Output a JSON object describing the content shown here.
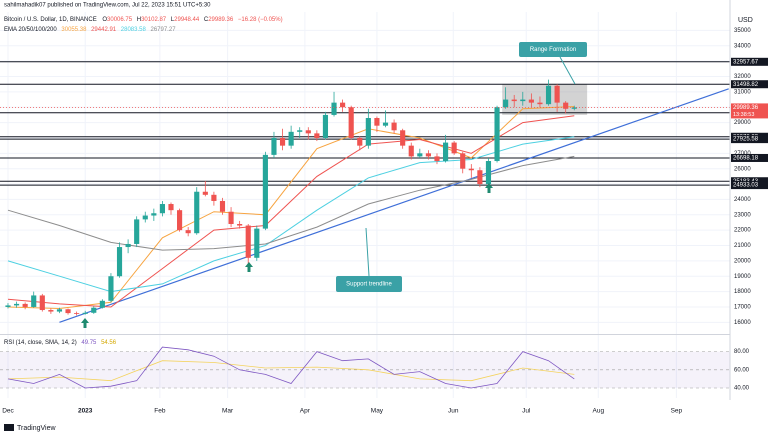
{
  "chart_data": {
    "type": "candlestick",
    "publisher": "sahilmahadik07 published on TradingView.com, Jul 22, 2023 15:51 UTC+5:30",
    "symbol": "Bitcoin / U.S. Dollar, 1D, BINANCE",
    "ohlc_labels": [
      "O",
      "H",
      "L",
      "C"
    ],
    "ohlc_values": [
      30006.75,
      30102.87,
      29948.44,
      29989.36
    ],
    "change": "−16.28 (−0.05%)",
    "ema_label": "EMA 20/50/100/200",
    "ema_values": [
      30055.38,
      29442.91,
      28083.58,
      26797.27
    ],
    "currency": "USD",
    "up_color": "#26a69a",
    "down_color": "#ef5350",
    "candles": [
      [
        17000,
        17250,
        16900,
        17100
      ],
      [
        17100,
        17350,
        16950,
        17200
      ],
      [
        17200,
        17300,
        16850,
        17000
      ],
      [
        17000,
        18000,
        16950,
        17750
      ],
      [
        17750,
        17850,
        16700,
        16800
      ],
      [
        16800,
        16900,
        16550,
        16700
      ],
      [
        16700,
        16950,
        16600,
        16850
      ],
      [
        16850,
        16900,
        16500,
        16600
      ],
      [
        16600,
        16700,
        16450,
        16550
      ],
      [
        16550,
        16750,
        16500,
        16620
      ],
      [
        16620,
        17050,
        16550,
        16950
      ],
      [
        16950,
        17500,
        16900,
        17400
      ],
      [
        17400,
        19200,
        17300,
        19000
      ],
      [
        19000,
        21200,
        18900,
        20900
      ],
      [
        20900,
        21400,
        20500,
        21100
      ],
      [
        21100,
        22900,
        20900,
        22700
      ],
      [
        22700,
        23200,
        22500,
        22950
      ],
      [
        22950,
        23400,
        22600,
        23100
      ],
      [
        23100,
        23900,
        22900,
        23700
      ],
      [
        23700,
        23800,
        23000,
        23300
      ],
      [
        23300,
        23400,
        21900,
        22000
      ],
      [
        22000,
        22200,
        21600,
        21800
      ],
      [
        21800,
        24800,
        21700,
        24500
      ],
      [
        24500,
        25200,
        24200,
        24300
      ],
      [
        24300,
        24500,
        23600,
        23900
      ],
      [
        23900,
        24100,
        23000,
        23200
      ],
      [
        23200,
        23500,
        22200,
        22400
      ],
      [
        22400,
        22600,
        22100,
        22300
      ],
      [
        22300,
        22400,
        19600,
        20200
      ],
      [
        20200,
        22300,
        20000,
        22100
      ],
      [
        22100,
        27100,
        22000,
        26900
      ],
      [
        26900,
        28400,
        26700,
        28000
      ],
      [
        28000,
        28600,
        27200,
        27500
      ],
      [
        27500,
        28800,
        27300,
        28400
      ],
      [
        28400,
        28700,
        28000,
        28500
      ],
      [
        28500,
        28700,
        27900,
        28300
      ],
      [
        28300,
        28500,
        27800,
        28000
      ],
      [
        28000,
        29700,
        27900,
        29500
      ],
      [
        29500,
        31000,
        29400,
        30300
      ],
      [
        30300,
        30500,
        29700,
        30000
      ],
      [
        30000,
        30100,
        27900,
        28000
      ],
      [
        28000,
        28100,
        27200,
        27500
      ],
      [
        27500,
        29900,
        27300,
        29300
      ],
      [
        29300,
        29400,
        28400,
        28800
      ],
      [
        28800,
        29800,
        28700,
        29000
      ],
      [
        29000,
        29200,
        28300,
        28500
      ],
      [
        28500,
        28600,
        27300,
        27500
      ],
      [
        27500,
        27700,
        26600,
        26800
      ],
      [
        26800,
        27300,
        26700,
        27000
      ],
      [
        27000,
        27200,
        26600,
        26800
      ],
      [
        26800,
        27000,
        26300,
        26500
      ],
      [
        26500,
        28200,
        26400,
        27700
      ],
      [
        27700,
        27800,
        26900,
        27000
      ],
      [
        27000,
        27100,
        25700,
        26000
      ],
      [
        26000,
        26300,
        25400,
        25900
      ],
      [
        25900,
        26100,
        24800,
        25000
      ],
      [
        25000,
        26700,
        24900,
        26500
      ],
      [
        26500,
        30100,
        26400,
        30000
      ],
      [
        30000,
        31300,
        29900,
        30500
      ],
      [
        30500,
        30800,
        30000,
        30400
      ],
      [
        30400,
        31000,
        30100,
        30500
      ],
      [
        30500,
        30900,
        30000,
        30300
      ],
      [
        30300,
        30700,
        30000,
        30200
      ],
      [
        30200,
        31800,
        30100,
        31400
      ],
      [
        31400,
        31500,
        29700,
        30300
      ],
      [
        30300,
        30400,
        29600,
        29900
      ],
      [
        29900,
        30100,
        29800,
        29990
      ]
    ],
    "ema_series": [
      {
        "color": "#f7a440",
        "x": [
          0,
          6,
          12,
          18,
          24,
          30,
          36,
          42,
          48,
          54,
          60,
          66
        ],
        "values": [
          17000,
          16900,
          17300,
          21500,
          23200,
          23000,
          27300,
          28600,
          28000,
          26700,
          29900,
          30050
        ]
      },
      {
        "color": "#ef5350",
        "x": [
          0,
          6,
          12,
          18,
          24,
          30,
          36,
          42,
          48,
          54,
          60,
          66
        ],
        "values": [
          17500,
          17200,
          17000,
          19500,
          22000,
          22300,
          25500,
          27600,
          27900,
          27000,
          29000,
          29440
        ]
      },
      {
        "color": "#4dd0e1",
        "x": [
          0,
          6,
          12,
          18,
          24,
          30,
          36,
          42,
          48,
          54,
          60,
          66
        ],
        "values": [
          20000,
          19000,
          18000,
          18500,
          20000,
          21000,
          23300,
          25400,
          26400,
          26600,
          27600,
          28080
        ]
      },
      {
        "color": "#8d8d8d",
        "x": [
          0,
          6,
          12,
          18,
          24,
          30,
          36,
          42,
          48,
          54,
          60,
          66
        ],
        "values": [
          23300,
          22300,
          21200,
          20700,
          20800,
          21100,
          22200,
          23700,
          24600,
          25300,
          26200,
          26800
        ]
      }
    ],
    "levels": [
      32957.67,
      31498.82,
      29642.21,
      28078.23,
      27925.58,
      26698.18,
      25183.43,
      24933.03
    ],
    "last_price": 29989.36,
    "countdown": "13:38:53",
    "range_box": {
      "x": [
        57.6,
        67.5
      ],
      "y": [
        29500,
        31500
      ]
    },
    "trendline": {
      "x": [
        6,
        84
      ],
      "y": [
        16000,
        31200
      ]
    },
    "annotations": [
      "Range Formation",
      "Support trendline"
    ],
    "xlim": [
      -0.93,
      84.15
    ],
    "xticks": [
      {
        "value": 0,
        "label": "Dec"
      },
      {
        "value": 9,
        "label": "2023"
      },
      {
        "value": 17.7,
        "label": "Feb"
      },
      {
        "value": 25.6,
        "label": "Mar"
      },
      {
        "value": 34.6,
        "label": "Apr"
      },
      {
        "value": 43,
        "label": "May"
      },
      {
        "value": 51.9,
        "label": "Jun"
      },
      {
        "value": 60.4,
        "label": "Jul"
      },
      {
        "value": 68.8,
        "label": "Aug"
      },
      {
        "value": 77.9,
        "label": "Sep"
      }
    ],
    "ylim": [
      15500,
      36200
    ],
    "yticks": [
      16000,
      17000,
      18000,
      19000,
      20000,
      21000,
      22000,
      23000,
      24000,
      25000,
      26000,
      27000,
      28000,
      29000,
      30000,
      31000,
      32000,
      33000,
      34000,
      35000
    ],
    "rsi_label": "RSI (14, close, SMA, 14, 2)",
    "rsi_values_now": [
      49.75,
      54.56
    ],
    "rsi": {
      "color": "#7e57c2",
      "x": [
        0,
        3,
        6,
        9,
        12,
        15,
        18,
        21,
        24,
        27,
        30,
        33,
        36,
        39,
        42,
        45,
        48,
        51,
        54,
        57,
        60,
        63,
        66
      ],
      "values": [
        50,
        45,
        55,
        40,
        42,
        48,
        85,
        82,
        75,
        60,
        55,
        45,
        80,
        70,
        72,
        55,
        58,
        45,
        40,
        45,
        80,
        70,
        50
      ]
    },
    "rsi_sma": {
      "color": "#f4d35e",
      "x": [
        0,
        6,
        12,
        18,
        24,
        30,
        36,
        42,
        48,
        54,
        60,
        66
      ],
      "values": [
        50,
        52,
        48,
        70,
        68,
        62,
        63,
        60,
        50,
        48,
        62,
        55
      ]
    },
    "rsi_ylim": [
      29,
      95
    ],
    "rsi_yticks": [
      {
        "value": 40,
        "label": "40.00"
      },
      {
        "value": 60,
        "label": "60.00"
      },
      {
        "value": 80,
        "label": "80.00"
      }
    ],
    "footer": "TradingView"
  }
}
